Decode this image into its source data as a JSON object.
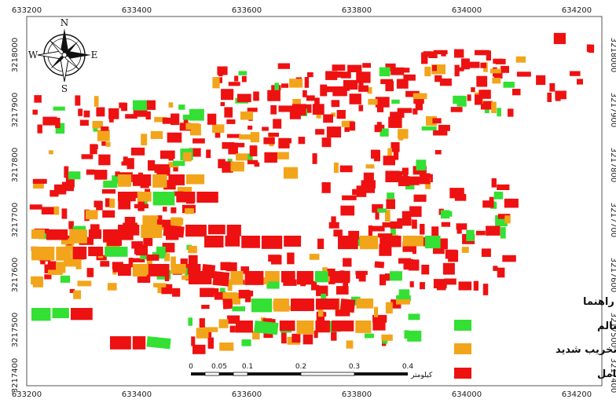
{
  "colors": {
    "none_or_low": "#33e033",
    "severe": "#f2a51a",
    "very_severe": "#ee1111",
    "frame": "#555555",
    "background": "#ffffff"
  },
  "coords": {
    "x_top": [
      "633200",
      "633400",
      "633600",
      "633800",
      "634000",
      "634200"
    ],
    "x_bottom": [
      "633200",
      "633400",
      "633600",
      "633800",
      "634000",
      "634200"
    ],
    "y_left": [
      "3218000",
      "3217900",
      "3217800",
      "3217700",
      "3217600",
      "3217500",
      "3217400"
    ],
    "y_right": [
      "3218000",
      "3217900",
      "3217800",
      "3217700",
      "3217600",
      "3217500",
      "3217400"
    ]
  },
  "compass": {
    "n": "N",
    "s": "S",
    "e": "E",
    "w": "W",
    "icon": "compass-rose-icon"
  },
  "legend": {
    "title": "راهنما",
    "items": [
      {
        "label": "تخریب کم یا سالم",
        "color_key": "none_or_low"
      },
      {
        "label": "تخریب شدید",
        "color_key": "severe"
      },
      {
        "label": "تخریب بسیار شدید یا کامل",
        "color_key": "very_severe"
      }
    ]
  },
  "scalebar": {
    "labels": [
      "0",
      "0.05",
      "0.1",
      "0.2",
      "0.3",
      "0.4"
    ],
    "unit": "کیلومتر"
  }
}
